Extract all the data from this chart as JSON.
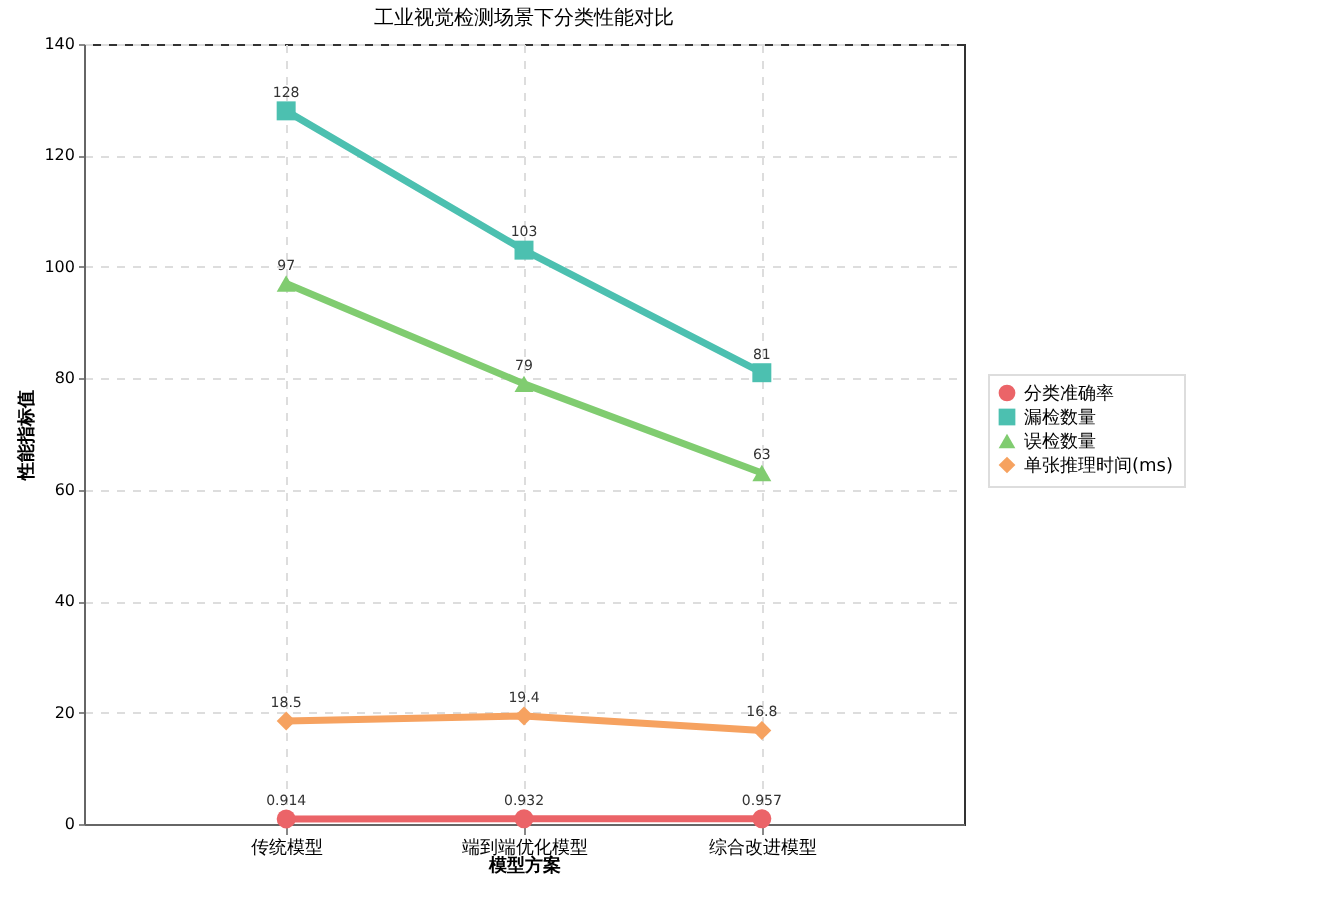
{
  "chart_data": {
    "type": "line",
    "title": "工业视觉检测场景下分类性能对比",
    "xlabel": "模型方案",
    "ylabel": "性能指标值",
    "categories": [
      "传统模型",
      "端到端优化模型",
      "综合改进模型"
    ],
    "series": [
      {
        "name": "分类准确率",
        "color": "#eb6468",
        "marker": "circle",
        "values": [
          0.914,
          0.932,
          0.957
        ]
      },
      {
        "name": "漏检数量",
        "color": "#4cc0b0",
        "marker": "square",
        "values": [
          128,
          103,
          81
        ]
      },
      {
        "name": "误检数量",
        "color": "#80cc70",
        "marker": "triangle",
        "values": [
          97,
          79,
          63
        ]
      },
      {
        "name": "单张推理时间(ms)",
        "color": "#f6a260",
        "marker": "diamond",
        "values": [
          18.5,
          19.4,
          16.8
        ]
      }
    ],
    "ylim": [
      0,
      140
    ],
    "yticks": [
      0,
      20,
      40,
      60,
      80,
      100,
      120,
      140
    ],
    "grid": true,
    "legend": "right",
    "data_labels": true,
    "line_style": "solid"
  }
}
